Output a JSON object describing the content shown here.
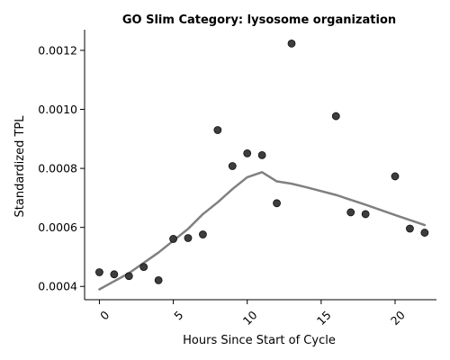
{
  "chart_data": {
    "type": "scatter",
    "title": "GO Slim Category: lysosome organization",
    "xlabel": "Hours Since Start of Cycle",
    "ylabel": "Standardized TPL",
    "xlim": [
      -1,
      22.8
    ],
    "ylim": [
      0.000355,
      0.00127
    ],
    "x_ticks": [
      0,
      5,
      10,
      15,
      20
    ],
    "x_tick_labels": [
      "0",
      "5",
      "10",
      "15",
      "20"
    ],
    "y_ticks": [
      0.0004,
      0.0006,
      0.0008,
      0.001,
      0.0012
    ],
    "y_tick_labels": [
      "0.0004",
      "0.0006",
      "0.0008",
      "0.0010",
      "0.0012"
    ],
    "grid": false,
    "points": {
      "name": "",
      "color": "#333333",
      "x": [
        0,
        1,
        2,
        3,
        4,
        5,
        6,
        7,
        8,
        9,
        10,
        11,
        12,
        13,
        16,
        17,
        18,
        20,
        21,
        22
      ],
      "y": [
        0.000448,
        0.000441,
        0.000435,
        0.000466,
        0.000421,
        0.000561,
        0.000564,
        0.000576,
        0.00093,
        0.000808,
        0.000851,
        0.000845,
        0.000682,
        0.001223,
        0.000977,
        0.000651,
        0.000645,
        0.000773,
        0.000596,
        0.000582
      ]
    },
    "trend": {
      "name": "",
      "color": "#808080",
      "x": [
        0,
        2,
        4,
        6,
        7,
        8,
        9,
        10,
        11,
        12,
        13,
        14,
        16,
        18,
        20,
        22
      ],
      "y": [
        0.00039,
        0.000445,
        0.000515,
        0.000595,
        0.000645,
        0.000685,
        0.00073,
        0.00077,
        0.000787,
        0.000756,
        0.000748,
        0.000736,
        0.00071,
        0.000677,
        0.000642,
        0.000608
      ]
    }
  }
}
